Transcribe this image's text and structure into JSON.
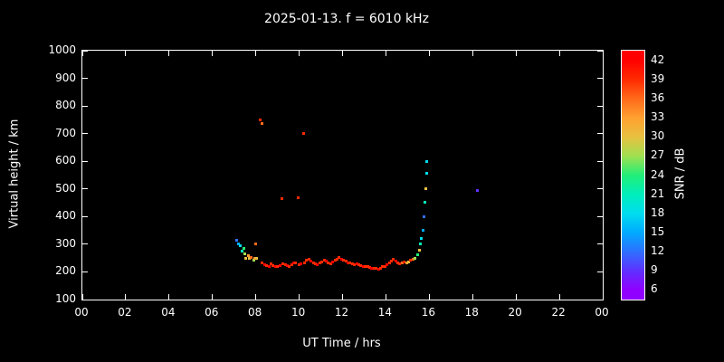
{
  "title": "2025-01-13. f = 6010 kHz",
  "colors": {
    "background": "#000000",
    "foreground": "#ffffff"
  },
  "axes": {
    "xlabel": "UT Time / hrs",
    "ylabel": "Virtual height / km",
    "x_tick_labels": [
      "00",
      "02",
      "04",
      "06",
      "08",
      "10",
      "12",
      "14",
      "16",
      "18",
      "20",
      "22",
      "00"
    ],
    "y_tick_labels": [
      "1000",
      "900",
      "800",
      "700",
      "600",
      "500",
      "400",
      "300",
      "200",
      "100"
    ]
  },
  "colorbar": {
    "label": "SNR / dB",
    "tick_labels": [
      42,
      39,
      36,
      33,
      30,
      27,
      24,
      21,
      18,
      15,
      12,
      9,
      6
    ],
    "range": [
      4.5,
      43.5
    ],
    "stops": [
      {
        "snr": 6,
        "color": "#9000ff"
      },
      {
        "snr": 9,
        "color": "#5f30ff"
      },
      {
        "snr": 12,
        "color": "#2e70ff"
      },
      {
        "snr": 15,
        "color": "#00aaff"
      },
      {
        "snr": 18,
        "color": "#00ddee"
      },
      {
        "snr": 21,
        "color": "#00eebb"
      },
      {
        "snr": 24,
        "color": "#22ee77"
      },
      {
        "snr": 27,
        "color": "#a0e050"
      },
      {
        "snr": 30,
        "color": "#e8c040"
      },
      {
        "snr": 33,
        "color": "#ffa030"
      },
      {
        "snr": 36,
        "color": "#ff6a1a"
      },
      {
        "snr": 39,
        "color": "#ff2a00"
      },
      {
        "snr": 42,
        "color": "#ff0000"
      }
    ]
  },
  "chart_data": {
    "type": "scatter",
    "title": "2025-01-13. f = 6010 kHz",
    "xlabel": "UT Time / hrs",
    "ylabel": "Virtual height / km",
    "xlim": [
      0,
      24
    ],
    "ylim": [
      100,
      1000
    ],
    "grid": false,
    "legend": "colorbar SNR / dB (6-42)",
    "points_format": [
      "ut_hours",
      "virtual_height_km",
      "snr_db"
    ],
    "points": [
      [
        7.1,
        315,
        12
      ],
      [
        7.2,
        300,
        14
      ],
      [
        7.3,
        295,
        17
      ],
      [
        7.35,
        275,
        21
      ],
      [
        7.45,
        285,
        24
      ],
      [
        7.5,
        265,
        28
      ],
      [
        7.55,
        250,
        31
      ],
      [
        7.65,
        258,
        34
      ],
      [
        7.7,
        248,
        30
      ],
      [
        7.8,
        252,
        36
      ],
      [
        7.9,
        244,
        27
      ],
      [
        7.95,
        250,
        33
      ],
      [
        8.0,
        300,
        36
      ],
      [
        8.05,
        248,
        30
      ],
      [
        8.2,
        750,
        40
      ],
      [
        8.28,
        738,
        36
      ],
      [
        9.2,
        465,
        40
      ],
      [
        9.95,
        468,
        40
      ],
      [
        10.2,
        700,
        40
      ],
      [
        8.3,
        232,
        40
      ],
      [
        8.4,
        226,
        41
      ],
      [
        8.5,
        222,
        39
      ],
      [
        8.6,
        220,
        42
      ],
      [
        8.7,
        228,
        40
      ],
      [
        8.8,
        224,
        39
      ],
      [
        8.9,
        221,
        41
      ],
      [
        9.0,
        219,
        40
      ],
      [
        9.1,
        224,
        42
      ],
      [
        9.25,
        229,
        39
      ],
      [
        9.35,
        226,
        40
      ],
      [
        9.45,
        222,
        41
      ],
      [
        9.55,
        220,
        39
      ],
      [
        9.65,
        226,
        40
      ],
      [
        9.75,
        231,
        42
      ],
      [
        9.85,
        234,
        40
      ],
      [
        10.0,
        226,
        39
      ],
      [
        10.1,
        229,
        41
      ],
      [
        10.25,
        233,
        40
      ],
      [
        10.35,
        241,
        39
      ],
      [
        10.45,
        246,
        40
      ],
      [
        10.55,
        240,
        42
      ],
      [
        10.65,
        234,
        40
      ],
      [
        10.75,
        229,
        39
      ],
      [
        10.85,
        226,
        41
      ],
      [
        10.95,
        231,
        40
      ],
      [
        11.05,
        236,
        39
      ],
      [
        11.15,
        241,
        40
      ],
      [
        11.25,
        238,
        42
      ],
      [
        11.35,
        233,
        40
      ],
      [
        11.45,
        230,
        39
      ],
      [
        11.55,
        235,
        41
      ],
      [
        11.65,
        241,
        40
      ],
      [
        11.75,
        247,
        39
      ],
      [
        11.85,
        251,
        40
      ],
      [
        11.95,
        246,
        42
      ],
      [
        12.05,
        242,
        40
      ],
      [
        12.15,
        238,
        39
      ],
      [
        12.25,
        234,
        41
      ],
      [
        12.35,
        231,
        40
      ],
      [
        12.45,
        228,
        39
      ],
      [
        12.55,
        226,
        40
      ],
      [
        12.65,
        229,
        42
      ],
      [
        12.75,
        226,
        40
      ],
      [
        12.85,
        223,
        39
      ],
      [
        12.95,
        221,
        41
      ],
      [
        13.05,
        219,
        40
      ],
      [
        13.15,
        218,
        39
      ],
      [
        13.25,
        216,
        40
      ],
      [
        13.35,
        214,
        42
      ],
      [
        13.45,
        213,
        40
      ],
      [
        13.55,
        212,
        39
      ],
      [
        13.65,
        211,
        41
      ],
      [
        13.75,
        214,
        40
      ],
      [
        13.85,
        218,
        39
      ],
      [
        13.95,
        221,
        40
      ],
      [
        14.05,
        227,
        42
      ],
      [
        14.15,
        233,
        40
      ],
      [
        14.25,
        240,
        39
      ],
      [
        14.35,
        246,
        40
      ],
      [
        14.45,
        238,
        41
      ],
      [
        14.55,
        232,
        40
      ],
      [
        14.65,
        229,
        39
      ],
      [
        14.75,
        233,
        36
      ],
      [
        14.85,
        236,
        40
      ],
      [
        14.95,
        231,
        33
      ],
      [
        15.05,
        235,
        30
      ],
      [
        15.15,
        241,
        40
      ],
      [
        15.25,
        246,
        36
      ],
      [
        15.35,
        250,
        27
      ],
      [
        15.45,
        262,
        24
      ],
      [
        15.55,
        280,
        30
      ],
      [
        15.6,
        300,
        21
      ],
      [
        15.65,
        322,
        18
      ],
      [
        15.7,
        352,
        15
      ],
      [
        15.75,
        400,
        12
      ],
      [
        15.8,
        452,
        21
      ],
      [
        15.85,
        500,
        30
      ],
      [
        15.88,
        555,
        18
      ],
      [
        15.9,
        600,
        17
      ],
      [
        18.2,
        495,
        9
      ]
    ]
  }
}
